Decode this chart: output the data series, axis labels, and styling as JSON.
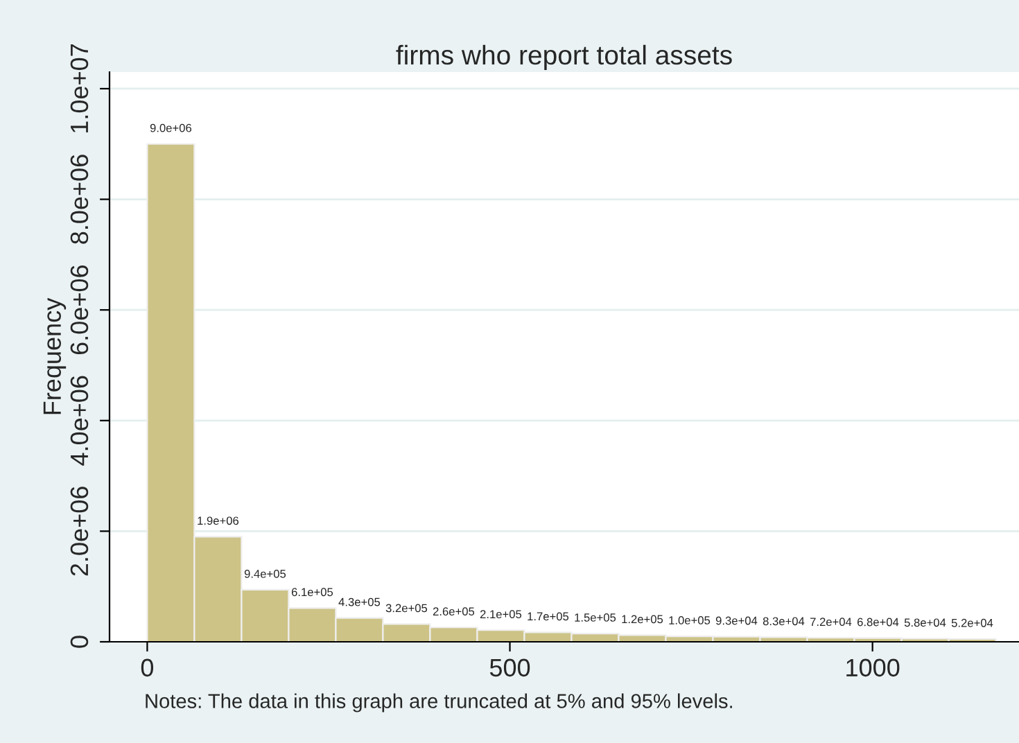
{
  "chart_data": {
    "type": "histogram",
    "title": "firms who report total assets",
    "ylabel": "Frequency",
    "bins": [
      0,
      65,
      130,
      195,
      260,
      325,
      390,
      455,
      520,
      585,
      650,
      715,
      780,
      845,
      910,
      975,
      1040,
      1105,
      1170
    ],
    "values": [
      9000000,
      1900000,
      940000,
      610000,
      430000,
      320000,
      260000,
      210000,
      170000,
      150000,
      120000,
      100000,
      93000,
      83000,
      72000,
      68000,
      58000,
      52000
    ],
    "value_labels": [
      "9.0e+06",
      "1.9e+06",
      "9.4e+05",
      "6.1e+05",
      "4.3e+05",
      "3.2e+05",
      "2.6e+05",
      "2.1e+05",
      "1.7e+05",
      "1.5e+05",
      "1.2e+05",
      "1.0e+05",
      "9.3e+04",
      "8.3e+04",
      "7.2e+04",
      "6.8e+04",
      "5.8e+04",
      "5.2e+04"
    ],
    "color": "#cdc387",
    "xlim": [
      -52,
      1202
    ],
    "xticks": [
      0,
      500,
      1000
    ],
    "ylim": [
      0,
      10300000
    ],
    "yticks": [
      0,
      {
        "value": 2000000,
        "label": "2.0e+06"
      },
      {
        "value": 4000000,
        "label": "4.0e+06"
      },
      {
        "value": 6000000,
        "label": "6.0e+06"
      },
      {
        "value": 8000000,
        "label": "8.0e+06"
      },
      {
        "value": 10000000,
        "label": "1.0e+07"
      }
    ],
    "grid": "y",
    "annotations": [
      "Notes: The data in this graph are truncated at 5% and 95% levels."
    ]
  }
}
